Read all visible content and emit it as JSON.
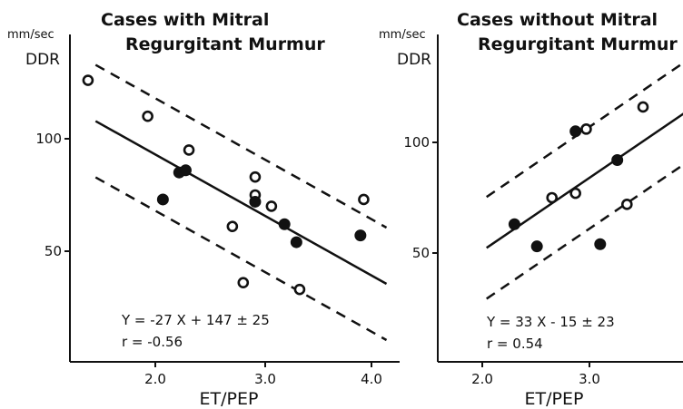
{
  "chart_data": [
    {
      "type": "scatter",
      "title": "Cases with Mitral Regurgitant Murmur",
      "title_lines": [
        "Cases with Mitral",
        "Regurgitant Murmur"
      ],
      "xlabel": "ET/PEP",
      "ylabel": "DDR",
      "yunit": "mm/sec",
      "xlim": [
        1.0,
        4.2
      ],
      "ylim": [
        0,
        135
      ],
      "xticks": [
        "2.0",
        "3.0",
        "4.0"
      ],
      "yticks": [
        "50",
        "100"
      ],
      "series": [
        {
          "marker": "open-circle",
          "x": [
            1.38,
            1.93,
            2.31,
            2.71,
            2.81,
            2.92,
            2.92,
            3.07,
            3.33,
            3.92
          ],
          "y": [
            126,
            110,
            95,
            61,
            36,
            83,
            75,
            70,
            33,
            73
          ]
        },
        {
          "marker": "filled-circle",
          "x": [
            2.07,
            2.22,
            2.28,
            2.92,
            3.19,
            3.3,
            3.89
          ],
          "y": [
            73,
            85,
            86,
            72,
            62,
            54,
            57
          ]
        }
      ],
      "regression": {
        "slope": -27,
        "intercept": 147,
        "band": 25,
        "x_range": [
          1.45,
          4.13
        ]
      },
      "equation": "Y = -27 X + 147 ± 25",
      "r_text": "r = -0.56"
    },
    {
      "type": "scatter",
      "title": "Cases without Mitral Regurgitant Murmur",
      "title_lines": [
        "Cases without Mitral",
        "Regurgitant Murmur"
      ],
      "xlabel": "ET/PEP",
      "ylabel": "DDR",
      "yunit": "mm/sec",
      "xlim": [
        1.5,
        4.2
      ],
      "ylim": [
        0,
        135
      ],
      "xticks": [
        "2.0",
        "3.0"
      ],
      "yticks": [
        "50",
        "100"
      ],
      "series": [
        {
          "marker": "open-circle",
          "x": [
            2.65,
            2.87,
            2.97,
            3.35,
            3.5
          ],
          "y": [
            75,
            77,
            106,
            72,
            116
          ]
        },
        {
          "marker": "filled-circle",
          "x": [
            2.3,
            2.51,
            2.87,
            3.1,
            3.26
          ],
          "y": [
            63,
            53,
            105,
            54,
            92
          ]
        }
      ],
      "regression": {
        "slope": 33,
        "intercept": -15,
        "band": 23,
        "x_range": [
          2.04,
          4.05
        ]
      },
      "equation": "Y = 33 X - 15 ± 23",
      "r_text": "r = 0.54"
    }
  ]
}
